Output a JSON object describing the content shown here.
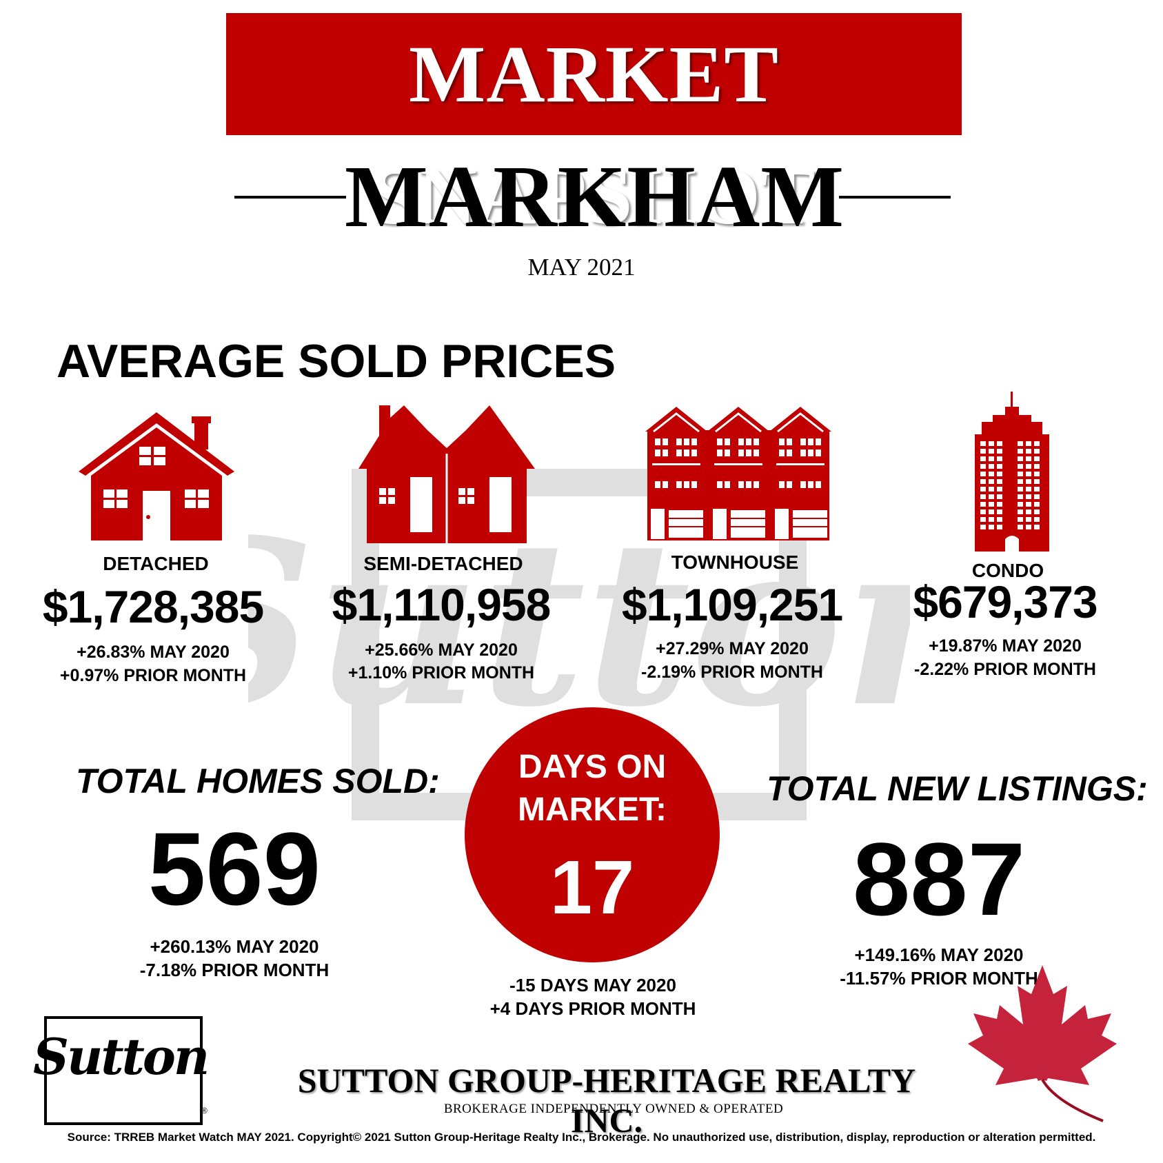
{
  "header": {
    "title": "MARKET SNAPSHOT",
    "city": "MARKHAM",
    "date": "MAY 2021"
  },
  "section_heading": "AVERAGE SOLD PRICES",
  "watermark_text": "Sutton",
  "property_types": [
    {
      "icon": "detached-house-icon",
      "label": "DETACHED",
      "price": "$1,728,385",
      "change_year": "+26.83% MAY 2020",
      "change_month": "+0.97% PRIOR MONTH"
    },
    {
      "icon": "semi-detached-house-icon",
      "label": "SEMI-DETACHED",
      "price": "$1,110,958",
      "change_year": "+25.66% MAY 2020",
      "change_month": "+1.10% PRIOR MONTH"
    },
    {
      "icon": "townhouse-icon",
      "label": "TOWNHOUSE",
      "price": "$1,109,251",
      "change_year": "+27.29% MAY 2020",
      "change_month": "-2.19% PRIOR MONTH"
    },
    {
      "icon": "condo-tower-icon",
      "label": "CONDO",
      "price": "$679,373",
      "change_year": "+19.87% MAY 2020",
      "change_month": "-2.22% PRIOR MONTH"
    }
  ],
  "homes_sold": {
    "title": "TOTAL HOMES SOLD:",
    "value": "569",
    "change_year": "+260.13% MAY 2020",
    "change_month": "-7.18% PRIOR MONTH"
  },
  "days_on_market": {
    "title_line1": "DAYS ON",
    "title_line2": "MARKET:",
    "value": "17",
    "change_year": "-15 DAYS MAY 2020",
    "change_month": "+4 DAYS PRIOR MONTH"
  },
  "new_listings": {
    "title": "TOTAL NEW LISTINGS:",
    "value": "887",
    "change_year": "+149.16% MAY 2020",
    "change_month": "-11.57% PRIOR MONTH"
  },
  "footer": {
    "logo_text": "Sutton",
    "company": "SUTTON GROUP-HERITAGE REALTY INC.",
    "tagline": "BROKERAGE INDEPENDENTLY OWNED & OPERATED",
    "source": "Source: TRREB Market Watch MAY 2021. Copyright© 2021 Sutton Group-Heritage Realty Inc., Brokerage. No unauthorized use, distribution, display, reproduction or alteration permitted."
  },
  "colors": {
    "accent_red": "#c00000",
    "text": "#000000",
    "background": "#ffffff"
  }
}
